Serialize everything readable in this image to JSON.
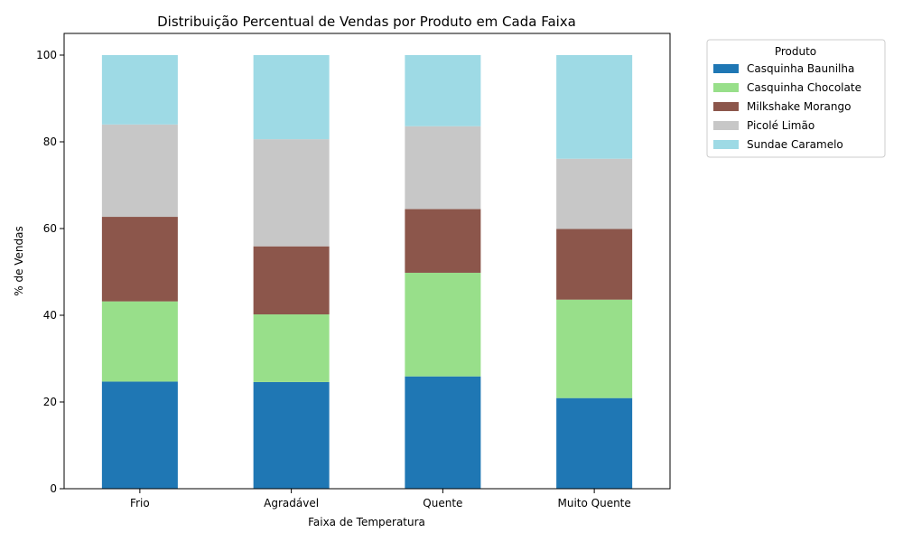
{
  "chart_data": {
    "type": "bar",
    "stacked": true,
    "title": "Distribuição Percentual de Vendas por Produto em Cada Faixa",
    "xlabel": "Faixa de Temperatura",
    "ylabel": "% de Vendas",
    "ylim": [
      0,
      105
    ],
    "yticks": [
      0,
      20,
      40,
      60,
      80,
      100
    ],
    "grid": false,
    "legend_title": "Produto",
    "legend_position": "outside-top-right",
    "categories": [
      "Frio",
      "Agradável",
      "Quente",
      "Muito Quente"
    ],
    "series": [
      {
        "name": "Casquinha Baunilha",
        "color": "#1f77b4",
        "values": [
          24.7,
          24.6,
          25.9,
          20.9
        ]
      },
      {
        "name": "Casquinha Chocolate",
        "color": "#98df8a",
        "values": [
          18.5,
          15.6,
          23.9,
          22.7
        ]
      },
      {
        "name": "Milkshake Morango",
        "color": "#8c564b",
        "values": [
          19.5,
          15.7,
          14.7,
          16.3
        ]
      },
      {
        "name": "Picolé Limão",
        "color": "#c7c7c7",
        "values": [
          21.3,
          24.7,
          19.1,
          16.2
        ]
      },
      {
        "name": "Sundae Caramelo",
        "color": "#9edae5",
        "values": [
          16.0,
          19.4,
          16.4,
          23.9
        ]
      }
    ]
  }
}
